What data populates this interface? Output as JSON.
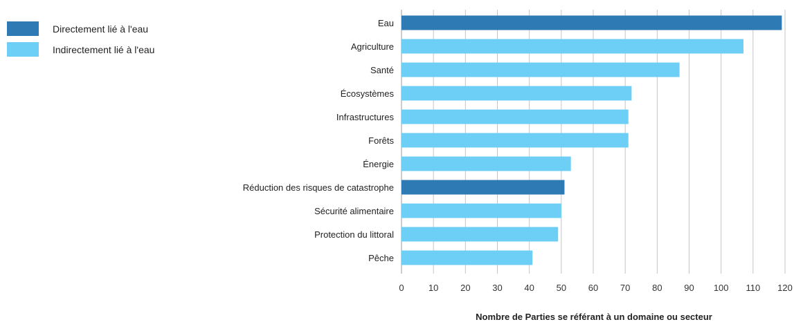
{
  "chart_data": {
    "type": "bar",
    "orientation": "horizontal",
    "categories": [
      "Eau",
      "Agriculture",
      "Santé",
      "Écosystèmes",
      "Infrastructures",
      "Forêts",
      "Énergie",
      "Réduction des risques de catastrophe",
      "Sécurité alimentaire",
      "Protection du littoral",
      "Pêche"
    ],
    "values": [
      119,
      107,
      87,
      72,
      71,
      71,
      53,
      51,
      50,
      49,
      41
    ],
    "groups": [
      "direct",
      "indirect",
      "indirect",
      "indirect",
      "indirect",
      "indirect",
      "indirect",
      "direct",
      "indirect",
      "indirect",
      "indirect"
    ],
    "title": "",
    "xlabel": "Nombre de Parties se référant à un domaine ou secteur",
    "ylabel": "",
    "xlim": [
      0,
      120
    ],
    "xticks": [
      0,
      10,
      20,
      30,
      40,
      50,
      60,
      70,
      80,
      90,
      100,
      110,
      120
    ],
    "grid": "vertical",
    "legend_position": "top-left",
    "legend": [
      {
        "key": "direct",
        "label": "Directement lié à l'eau",
        "color": "#2e7ab5"
      },
      {
        "key": "indirect",
        "label": "Indirectement lié à l'eau",
        "color": "#6dcff6"
      }
    ]
  }
}
